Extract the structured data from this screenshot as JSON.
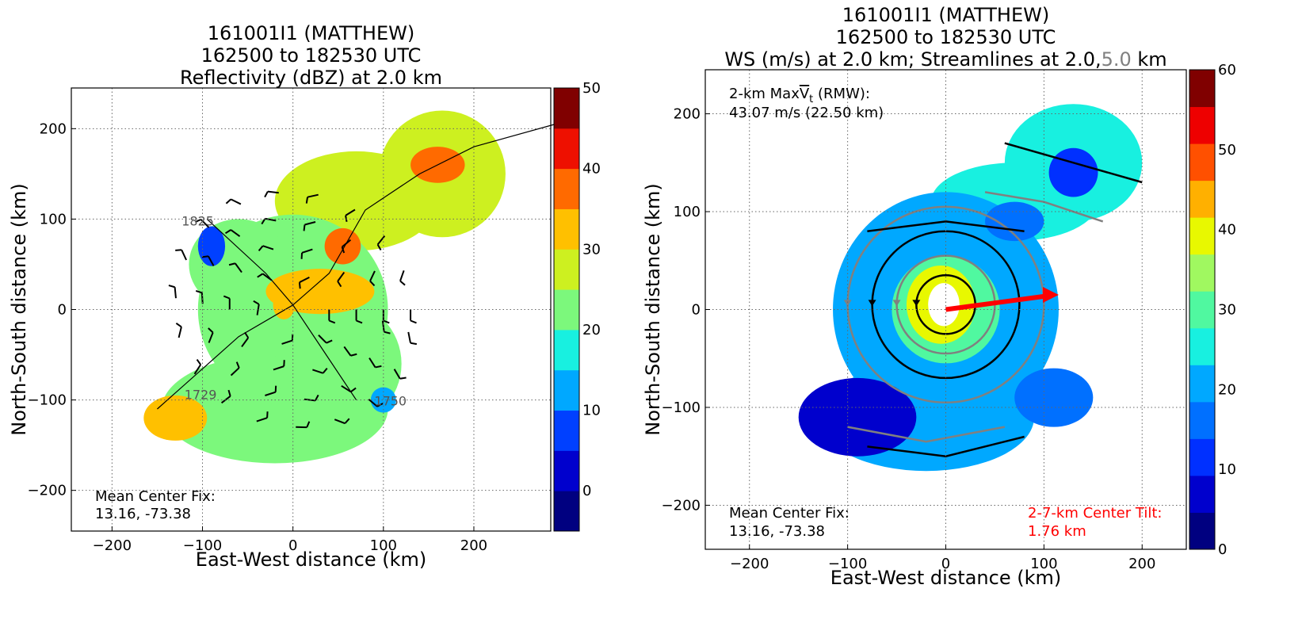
{
  "chart_data": [
    {
      "type": "heatmap",
      "panel": "left",
      "title_lines": [
        "161001I1 (MATTHEW)",
        "162500 to 182530 UTC",
        "Reflectivity (dBZ) at 2.0 km"
      ],
      "xlabel": "East-West distance (km)",
      "ylabel": "North-South distance (km)",
      "xlim": [
        -245,
        285
      ],
      "ylim": [
        -245,
        245
      ],
      "xticks": [
        -200,
        -100,
        0,
        100,
        200
      ],
      "yticks": [
        -200,
        -100,
        0,
        100,
        200
      ],
      "xtick_labels": [
        "−200",
        "−100",
        "0",
        "100",
        "200"
      ],
      "ytick_labels": [
        "−200",
        "−100",
        "0",
        "100",
        "200"
      ],
      "grid": true,
      "colorbar": {
        "min": -5,
        "max": 50,
        "step": 5,
        "tick_values": [
          0,
          10,
          20,
          30,
          40,
          50
        ],
        "tick_labels": [
          "0",
          "10",
          "20",
          "30",
          "40",
          "50"
        ],
        "colors": [
          "#000080",
          "#0000cd",
          "#0040ff",
          "#00a8ff",
          "#18f0e0",
          "#7cf87c",
          "#cdf020",
          "#ffc000",
          "#ff6a00",
          "#ee1000",
          "#800000"
        ]
      },
      "flight_track_labels": [
        {
          "text": "1825",
          "x": -123,
          "y": 93
        },
        {
          "text": "1729",
          "x": -120,
          "y": -99
        },
        {
          "text": "1750",
          "x": 90,
          "y": -106
        }
      ],
      "annotation_lines": [
        "Mean Center Fix:",
        "13.16, -73.38"
      ],
      "echo_blobs": [
        {
          "cx": 165,
          "cy": 150,
          "rx": 70,
          "ry": 70,
          "value": 28
        },
        {
          "cx": 70,
          "cy": 120,
          "rx": 90,
          "ry": 55,
          "value": 28
        },
        {
          "cx": 0,
          "cy": 0,
          "rx": 105,
          "ry": 105,
          "value": 22
        },
        {
          "cx": -60,
          "cy": 50,
          "rx": 55,
          "ry": 50,
          "value": 24
        },
        {
          "cx": -20,
          "cy": -110,
          "rx": 125,
          "ry": 60,
          "value": 24
        },
        {
          "cx": 50,
          "cy": -60,
          "rx": 70,
          "ry": 70,
          "value": 22
        },
        {
          "cx": -130,
          "cy": -120,
          "rx": 35,
          "ry": 25,
          "value": 30
        },
        {
          "cx": 160,
          "cy": 160,
          "rx": 30,
          "ry": 20,
          "value": 38
        },
        {
          "cx": 55,
          "cy": 70,
          "rx": 20,
          "ry": 20,
          "value": 38
        },
        {
          "cx": -90,
          "cy": 70,
          "rx": 15,
          "ry": 22,
          "value": 8
        },
        {
          "cx": 100,
          "cy": -100,
          "rx": 14,
          "ry": 14,
          "value": 12
        },
        {
          "cx": -10,
          "cy": 5,
          "rx": 12,
          "ry": 16,
          "value": 32
        },
        {
          "cx": 30,
          "cy": 20,
          "rx": 60,
          "ry": 25,
          "value": 30
        }
      ]
    },
    {
      "type": "heatmap",
      "panel": "right",
      "title_lines": [
        "161001I1 (MATTHEW)",
        "162500 to 182530 UTC"
      ],
      "title_line3_parts": [
        "WS (m/s) at 2.0 km; Streamlines at 2.0,",
        "5.0",
        " km"
      ],
      "xlabel": "East-West distance (km)",
      "ylabel": "North-South distance (km)",
      "xlim": [
        -245,
        245
      ],
      "ylim": [
        -245,
        245
      ],
      "xticks": [
        -200,
        -100,
        0,
        100,
        200
      ],
      "yticks": [
        -200,
        -100,
        0,
        100,
        200
      ],
      "xtick_labels": [
        "−200",
        "−100",
        "0",
        "100",
        "200"
      ],
      "ytick_labels": [
        "−200",
        "−100",
        "0",
        "100",
        "200"
      ],
      "grid": true,
      "colorbar": {
        "min": 0,
        "max": 60,
        "step": 5,
        "tick_values": [
          0,
          10,
          20,
          30,
          40,
          50,
          60
        ],
        "tick_labels": [
          "0",
          "10",
          "20",
          "30",
          "40",
          "50",
          "60"
        ],
        "colors": [
          "#000080",
          "#0000cd",
          "#0030ff",
          "#0070ff",
          "#00a8ff",
          "#18f0e0",
          "#50f8a0",
          "#a0f860",
          "#e8f800",
          "#ffb000",
          "#ff5000",
          "#ee0000",
          "#800000"
        ]
      },
      "max_wind_annotation": {
        "line1_prefix": "2-km Max",
        "line1_symbol": "V",
        "line1_subscript": "t",
        "line1_suffix": " (RMW):",
        "line2": "43.07 m/s (22.50 km)"
      },
      "annotation_lines": [
        "Mean Center Fix:",
        "13.16, -73.38"
      ],
      "tilt_annotation_lines": [
        "2-7-km Center Tilt:",
        "1.76 km"
      ],
      "tilt_vector": {
        "x0": 0,
        "y0": 0,
        "x1": 115,
        "y1": 15
      },
      "colors": {
        "tilt": "#ff0000",
        "streamline_low": "#000000",
        "streamline_high": "#808080"
      },
      "wind_blobs": [
        {
          "cx": 130,
          "cy": 150,
          "rx": 70,
          "ry": 60,
          "value": 27
        },
        {
          "cx": 70,
          "cy": 110,
          "rx": 85,
          "ry": 40,
          "value": 25
        },
        {
          "cx": 0,
          "cy": 0,
          "rx": 115,
          "ry": 120,
          "value": 24
        },
        {
          "cx": -20,
          "cy": -110,
          "rx": 110,
          "ry": 55,
          "value": 20
        },
        {
          "cx": -90,
          "cy": -110,
          "rx": 60,
          "ry": 40,
          "value": 9
        },
        {
          "cx": 110,
          "cy": -90,
          "rx": 40,
          "ry": 30,
          "value": 18
        },
        {
          "cx": 130,
          "cy": 140,
          "rx": 25,
          "ry": 25,
          "value": 14
        },
        {
          "cx": 70,
          "cy": 90,
          "rx": 30,
          "ry": 20,
          "value": 16
        },
        {
          "cx": 0,
          "cy": 0,
          "rx": 55,
          "ry": 55,
          "value": 32
        },
        {
          "cx": -5,
          "cy": 5,
          "rx": 35,
          "ry": 40,
          "value": 44
        }
      ],
      "streamline_circles": [
        {
          "r": 30
        },
        {
          "r": 50
        },
        {
          "r": 75
        },
        {
          "r": 100
        }
      ]
    }
  ]
}
